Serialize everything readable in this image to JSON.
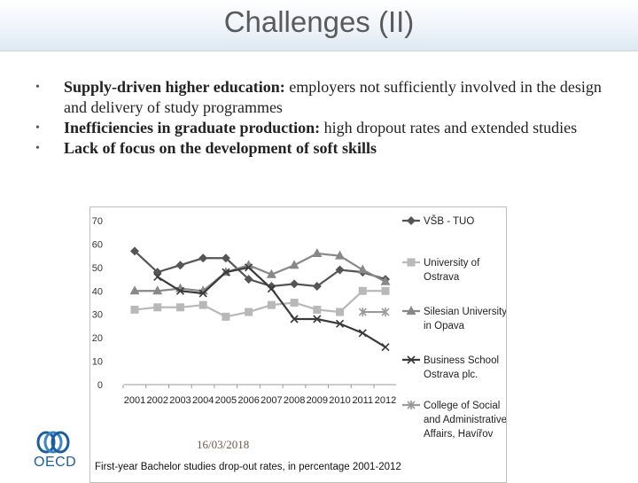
{
  "slide": {
    "title": "Challenges (II)",
    "bullets": [
      {
        "bold": "Supply-driven higher education:",
        "text": " employers not sufficiently involved in the design and delivery of study programmes"
      },
      {
        "bold": "Inefficiencies in graduate production:",
        "text": " high dropout rates and extended studies"
      },
      {
        "bold": "Lack of focus on the development of  soft skills",
        "text": ""
      }
    ],
    "date": "16/03/2018",
    "caption": "First-year Bachelor studies drop-out rates, in percentage 2001-2012",
    "logo_text": "OECD"
  },
  "chart_data": {
    "type": "line",
    "categories": [
      "2001",
      "2002",
      "2003",
      "2004",
      "2005",
      "2006",
      "2007",
      "2008",
      "2009",
      "2010",
      "2011",
      "2012"
    ],
    "y_ticks": [
      "0",
      "10",
      "20",
      "30",
      "40",
      "50",
      "60",
      "70"
    ],
    "ylim": [
      0,
      70
    ],
    "title": "",
    "xlabel": "",
    "ylabel": "",
    "legend_position": "right",
    "series": [
      {
        "name": "VŠB - TUO",
        "color": "#555555",
        "marker": "diamond",
        "values": [
          57,
          48,
          51,
          54,
          54,
          45,
          42,
          43,
          42,
          49,
          48,
          45
        ]
      },
      {
        "name": "University of Ostrava",
        "color": "#b8b8b8",
        "marker": "square",
        "values": [
          32,
          33,
          33,
          34,
          29,
          31,
          34,
          35,
          32,
          31,
          40,
          40
        ]
      },
      {
        "name": "Silesian University in Opava",
        "color": "#888888",
        "marker": "triangle",
        "values": [
          40,
          40,
          41,
          40,
          48,
          51,
          47,
          51,
          56,
          55,
          49,
          44
        ]
      },
      {
        "name": "Business School Ostrava plc.",
        "color": "#3a3a3a",
        "marker": "x",
        "values": [
          null,
          46,
          40,
          39,
          48,
          50,
          41,
          28,
          28,
          26,
          22,
          16
        ]
      },
      {
        "name": "College of Social and Administrative Affairs, Havířov",
        "color": "#9a9a9a",
        "marker": "asterisk",
        "values": [
          null,
          null,
          null,
          null,
          null,
          null,
          null,
          null,
          null,
          null,
          31,
          31
        ]
      }
    ]
  }
}
